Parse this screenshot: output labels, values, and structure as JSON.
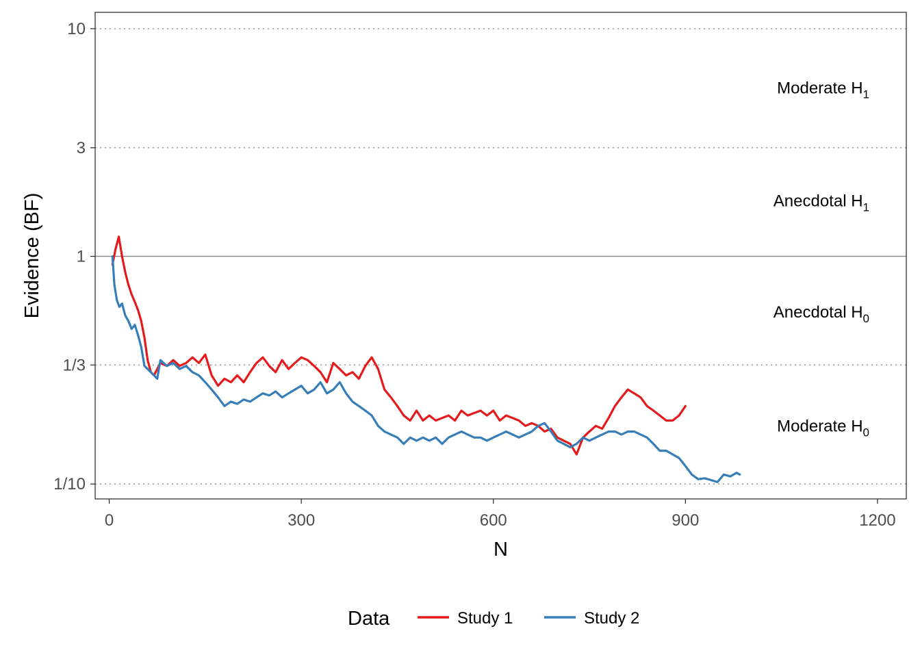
{
  "chart_data": {
    "type": "line",
    "xlabel": "N",
    "ylabel": "Evidence (BF)",
    "xlim": [
      -22,
      1245
    ],
    "ylim": [
      0.086,
      11.8
    ],
    "yscale": "log",
    "x_ticks": [
      0,
      300,
      600,
      900,
      1200
    ],
    "x_tick_labels": [
      "0",
      "300",
      "600",
      "900",
      "1200"
    ],
    "y_ticks": [
      0.1,
      0.3333,
      1,
      3,
      10
    ],
    "y_tick_labels": [
      "1/10",
      "1/3",
      "1",
      "3",
      "10"
    ],
    "dotted_reference_lines": [
      0.1,
      0.3333,
      3,
      10
    ],
    "solid_reference_line": 1,
    "grid": false,
    "region_labels": [
      {
        "main": "Moderate H",
        "sub": "1",
        "y": 5.5
      },
      {
        "main": "Anecdotal H",
        "sub": "1",
        "y": 1.75
      },
      {
        "main": "Anecdotal H",
        "sub": "0",
        "y": 0.57
      },
      {
        "main": "Moderate H",
        "sub": "0",
        "y": 0.18
      }
    ],
    "legend": {
      "title": "Data",
      "position": "bottom",
      "entries": [
        "Study 1",
        "Study 2"
      ]
    },
    "series": [
      {
        "name": "Study 1",
        "color": "#e41a1c",
        "x": [
          5,
          10,
          15,
          20,
          25,
          30,
          35,
          40,
          45,
          50,
          55,
          60,
          65,
          70,
          75,
          80,
          90,
          100,
          110,
          120,
          130,
          140,
          150,
          160,
          170,
          180,
          190,
          200,
          210,
          220,
          230,
          240,
          250,
          260,
          270,
          280,
          290,
          300,
          310,
          320,
          330,
          340,
          350,
          360,
          370,
          380,
          390,
          400,
          410,
          420,
          430,
          440,
          450,
          460,
          470,
          480,
          490,
          500,
          510,
          520,
          530,
          540,
          550,
          560,
          570,
          580,
          590,
          600,
          610,
          620,
          630,
          640,
          650,
          660,
          670,
          680,
          690,
          700,
          710,
          720,
          730,
          740,
          750,
          760,
          770,
          780,
          790,
          800,
          810,
          820,
          830,
          840,
          850,
          860,
          870,
          880,
          890,
          900
        ],
        "y": [
          0.92,
          1.08,
          1.22,
          1.0,
          0.85,
          0.75,
          0.68,
          0.63,
          0.58,
          0.52,
          0.44,
          0.35,
          0.31,
          0.3,
          0.32,
          0.34,
          0.33,
          0.35,
          0.33,
          0.34,
          0.36,
          0.34,
          0.37,
          0.3,
          0.27,
          0.29,
          0.28,
          0.3,
          0.28,
          0.31,
          0.34,
          0.36,
          0.33,
          0.31,
          0.35,
          0.32,
          0.34,
          0.36,
          0.35,
          0.33,
          0.31,
          0.28,
          0.34,
          0.32,
          0.3,
          0.31,
          0.29,
          0.33,
          0.36,
          0.32,
          0.26,
          0.24,
          0.22,
          0.2,
          0.19,
          0.21,
          0.19,
          0.2,
          0.19,
          0.195,
          0.2,
          0.19,
          0.21,
          0.2,
          0.205,
          0.21,
          0.2,
          0.21,
          0.19,
          0.2,
          0.195,
          0.19,
          0.18,
          0.185,
          0.18,
          0.17,
          0.175,
          0.16,
          0.155,
          0.15,
          0.135,
          0.16,
          0.17,
          0.18,
          0.175,
          0.195,
          0.22,
          0.24,
          0.26,
          0.25,
          0.24,
          0.22,
          0.21,
          0.2,
          0.19,
          0.19,
          0.2,
          0.22
        ]
      },
      {
        "name": "Study 2",
        "color": "#377eb8",
        "x": [
          5,
          8,
          12,
          16,
          20,
          25,
          30,
          35,
          40,
          45,
          50,
          55,
          60,
          65,
          70,
          75,
          80,
          90,
          100,
          110,
          120,
          130,
          140,
          150,
          160,
          170,
          180,
          190,
          200,
          210,
          220,
          230,
          240,
          250,
          260,
          270,
          280,
          290,
          300,
          310,
          320,
          330,
          340,
          350,
          360,
          370,
          380,
          390,
          400,
          410,
          420,
          430,
          440,
          450,
          460,
          470,
          480,
          490,
          500,
          510,
          520,
          530,
          540,
          550,
          560,
          570,
          580,
          590,
          600,
          610,
          620,
          630,
          640,
          650,
          660,
          670,
          680,
          690,
          700,
          710,
          720,
          730,
          740,
          750,
          760,
          770,
          780,
          790,
          800,
          810,
          820,
          830,
          840,
          850,
          860,
          870,
          880,
          890,
          900,
          910,
          920,
          930,
          940,
          950,
          960,
          970,
          980,
          985
        ],
        "y": [
          1.0,
          0.75,
          0.64,
          0.6,
          0.62,
          0.55,
          0.52,
          0.48,
          0.5,
          0.45,
          0.4,
          0.33,
          0.32,
          0.31,
          0.3,
          0.29,
          0.35,
          0.33,
          0.34,
          0.32,
          0.33,
          0.31,
          0.3,
          0.28,
          0.26,
          0.24,
          0.22,
          0.23,
          0.225,
          0.235,
          0.23,
          0.24,
          0.25,
          0.245,
          0.255,
          0.24,
          0.25,
          0.26,
          0.27,
          0.25,
          0.26,
          0.28,
          0.25,
          0.26,
          0.28,
          0.25,
          0.23,
          0.22,
          0.21,
          0.2,
          0.18,
          0.17,
          0.165,
          0.16,
          0.15,
          0.16,
          0.155,
          0.16,
          0.155,
          0.16,
          0.15,
          0.16,
          0.165,
          0.17,
          0.165,
          0.16,
          0.16,
          0.155,
          0.16,
          0.165,
          0.17,
          0.165,
          0.16,
          0.165,
          0.17,
          0.18,
          0.185,
          0.17,
          0.155,
          0.15,
          0.145,
          0.15,
          0.16,
          0.155,
          0.16,
          0.165,
          0.17,
          0.17,
          0.165,
          0.17,
          0.17,
          0.165,
          0.16,
          0.15,
          0.14,
          0.14,
          0.135,
          0.13,
          0.12,
          0.11,
          0.105,
          0.106,
          0.104,
          0.102,
          0.11,
          0.108,
          0.112,
          0.11
        ]
      }
    ]
  }
}
